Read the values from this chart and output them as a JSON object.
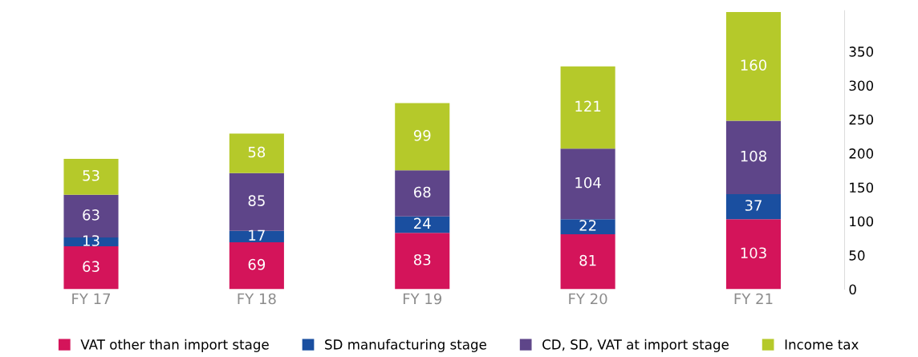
{
  "chart_data": {
    "type": "bar",
    "stacked": true,
    "categories": [
      "FY 17",
      "FY 18",
      "FY 19",
      "FY 20",
      "FY 21"
    ],
    "series": [
      {
        "name": "VAT other than import stage",
        "color": "#d4145a",
        "values": [
          63,
          69,
          83,
          81,
          103
        ]
      },
      {
        "name": "SD manufacturing stage",
        "color": "#1a4fa0",
        "values": [
          13,
          17,
          24,
          22,
          37
        ]
      },
      {
        "name": "CD, SD, VAT at import stage",
        "color": "#5e4589",
        "values": [
          63,
          85,
          68,
          104,
          108
        ]
      },
      {
        "name": "Income tax",
        "color": "#b5c92a",
        "values": [
          53,
          58,
          99,
          121,
          160
        ]
      }
    ],
    "ylim": [
      0,
      410
    ],
    "yticks": [
      0,
      50,
      100,
      150,
      200,
      250,
      300,
      350
    ],
    "data_labels": true,
    "legend": "bottom",
    "grid": false
  }
}
